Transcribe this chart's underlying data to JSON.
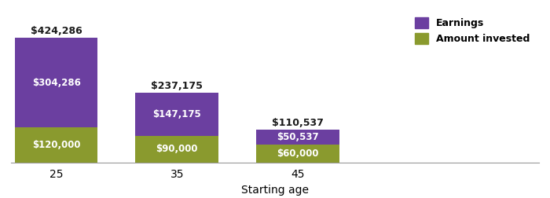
{
  "categories": [
    "25",
    "35",
    "45"
  ],
  "earnings": [
    304286,
    147175,
    50537
  ],
  "amount_invested": [
    120000,
    90000,
    60000
  ],
  "total_labels": [
    "$424,286",
    "$237,175",
    "$110,537"
  ],
  "earnings_labels": [
    "$304,286",
    "$147,175",
    "$50,537"
  ],
  "invested_labels": [
    "$120,000",
    "$90,000",
    "$60,000"
  ],
  "earnings_color": "#6b3fa0",
  "invested_color": "#8a9a2e",
  "xlabel": "Starting age",
  "legend_earnings": "Earnings",
  "legend_invested": "Amount invested",
  "bar_width": 0.55,
  "ylim": [
    0,
    500000
  ],
  "bg_color": "#ffffff",
  "text_color_white": "#ffffff",
  "text_color_dark": "#1a1a1a",
  "total_label_fontsize": 9,
  "inner_label_fontsize": 8.5,
  "bar_positions": [
    0.3,
    1.1,
    1.9
  ],
  "xlim": [
    0.0,
    3.5
  ]
}
